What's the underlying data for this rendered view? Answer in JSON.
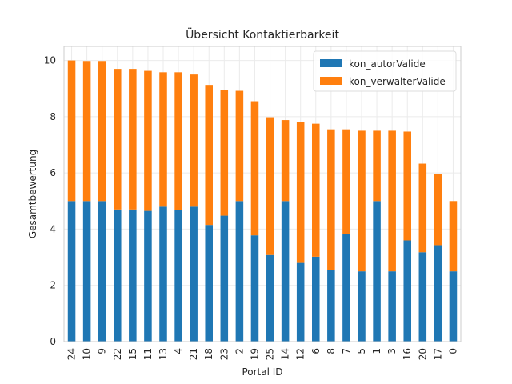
{
  "chart_data": {
    "type": "bar",
    "stacked": true,
    "title": "Übersicht Kontaktierbarkeit",
    "xlabel": "Portal ID",
    "ylabel": "Gesamtbewertung",
    "ylim": [
      0,
      10.5
    ],
    "yticks": [
      0,
      2,
      4,
      6,
      8,
      10
    ],
    "grid": true,
    "legend_position": "top-right",
    "categories": [
      "24",
      "10",
      "9",
      "22",
      "15",
      "11",
      "13",
      "4",
      "21",
      "18",
      "23",
      "2",
      "19",
      "25",
      "14",
      "12",
      "6",
      "8",
      "7",
      "5",
      "1",
      "3",
      "16",
      "20",
      "17",
      "0"
    ],
    "series": [
      {
        "name": "kon_autorValide",
        "color": "#1f77b4",
        "values": [
          5.0,
          5.0,
          5.0,
          4.7,
          4.7,
          4.65,
          4.8,
          4.68,
          4.8,
          4.15,
          4.48,
          5.0,
          3.78,
          3.08,
          5.0,
          2.8,
          3.02,
          2.55,
          3.82,
          2.5,
          5.0,
          2.5,
          3.6,
          3.18,
          3.43,
          2.5
        ]
      },
      {
        "name": "kon_verwalterValide",
        "color": "#ff7f0e",
        "values": [
          5.0,
          4.98,
          4.98,
          5.0,
          5.0,
          4.98,
          4.78,
          4.9,
          4.7,
          4.98,
          4.48,
          3.92,
          4.77,
          4.9,
          2.88,
          5.0,
          4.73,
          5.0,
          3.73,
          5.0,
          2.5,
          5.0,
          3.87,
          3.15,
          2.52,
          2.5
        ]
      }
    ]
  }
}
